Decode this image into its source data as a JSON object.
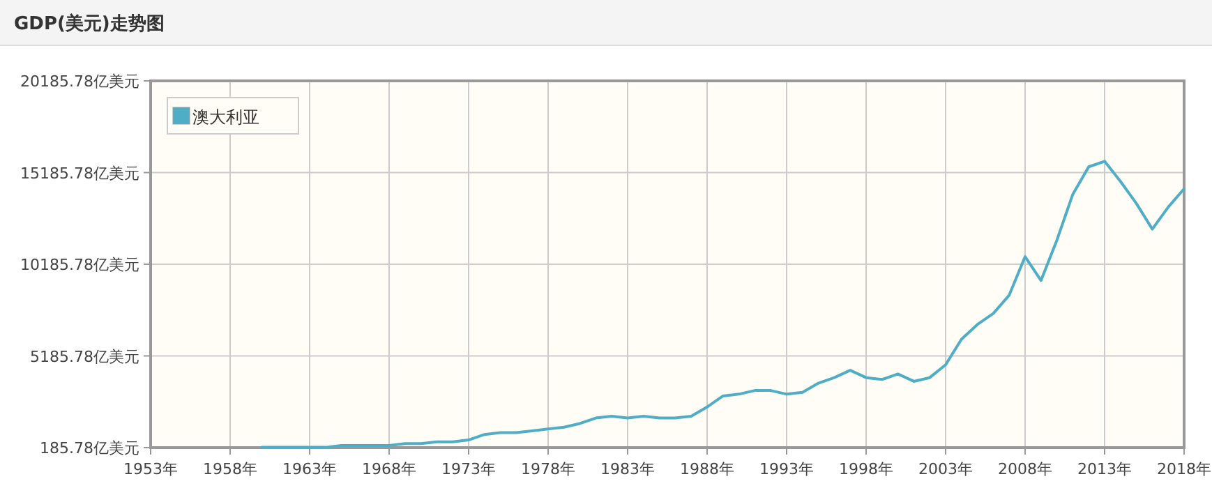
{
  "chart_data": {
    "type": "line",
    "title": "GDP(美元)走势图",
    "x": [
      1960,
      1961,
      1962,
      1963,
      1964,
      1965,
      1966,
      1967,
      1968,
      1969,
      1970,
      1971,
      1972,
      1973,
      1974,
      1975,
      1976,
      1977,
      1978,
      1979,
      1980,
      1981,
      1982,
      1983,
      1984,
      1985,
      1986,
      1987,
      1988,
      1989,
      1990,
      1991,
      1992,
      1993,
      1994,
      1995,
      1996,
      1997,
      1998,
      1999,
      2000,
      2001,
      2002,
      2003,
      2004,
      2005,
      2006,
      2007,
      2008,
      2009,
      2010,
      2011,
      2012,
      2013,
      2014,
      2015,
      2016,
      2017,
      2018
    ],
    "series": [
      {
        "name": "澳大利亚",
        "color": "#4faec6",
        "values": [
          200,
          200,
          200,
          200,
          200,
          300,
          300,
          300,
          300,
          400,
          400,
          500,
          500,
          600,
          900,
          1000,
          1000,
          1100,
          1200,
          1300,
          1500,
          1800,
          1900,
          1800,
          1900,
          1800,
          1800,
          1900,
          2400,
          3000,
          3100,
          3300,
          3300,
          3100,
          3200,
          3700,
          4000,
          4400,
          4000,
          3900,
          4200,
          3800,
          4000,
          4700,
          6100,
          6900,
          7500,
          8500,
          10600,
          9300,
          11500,
          14000,
          15500,
          15800,
          14700,
          13500,
          12100,
          13300,
          14300
        ]
      }
    ],
    "xlim": [
      1953,
      2018
    ],
    "xticks": [
      {
        "value": 1953,
        "label": "1953年"
      },
      {
        "value": 1958,
        "label": "1958年"
      },
      {
        "value": 1963,
        "label": "1963年"
      },
      {
        "value": 1968,
        "label": "1968年"
      },
      {
        "value": 1973,
        "label": "1973年"
      },
      {
        "value": 1978,
        "label": "1978年"
      },
      {
        "value": 1983,
        "label": "1983年"
      },
      {
        "value": 1988,
        "label": "1988年"
      },
      {
        "value": 1993,
        "label": "1993年"
      },
      {
        "value": 1998,
        "label": "1998年"
      },
      {
        "value": 2003,
        "label": "2003年"
      },
      {
        "value": 2008,
        "label": "2008年"
      },
      {
        "value": 2013,
        "label": "2013年"
      },
      {
        "value": 2018,
        "label": "2018年"
      }
    ],
    "ylim": [
      185.78,
      20185.78
    ],
    "yticks": [
      {
        "value": 185.78,
        "label": "185.78亿美元"
      },
      {
        "value": 5185.78,
        "label": "5185.78亿美元"
      },
      {
        "value": 10185.78,
        "label": "10185.78亿美元"
      },
      {
        "value": 15185.78,
        "label": "15185.78亿美元"
      },
      {
        "value": 20185.78,
        "label": "20185.78亿美元"
      }
    ],
    "grid": true,
    "legend": "top left",
    "marker": "none",
    "line_style": "solid"
  }
}
